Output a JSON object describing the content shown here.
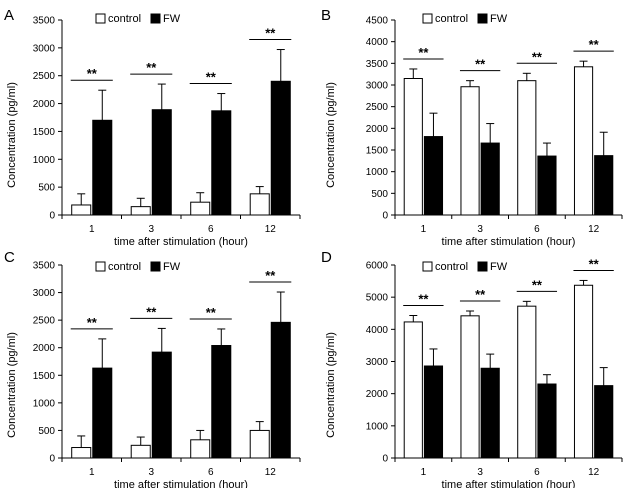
{
  "figure": {
    "colors": {
      "control": "#ffffff",
      "fw": "#000000",
      "axis": "#000000"
    },
    "panels": [
      {
        "letter": "A"
      },
      {
        "letter": "B"
      },
      {
        "letter": "C"
      },
      {
        "letter": "D"
      }
    ]
  },
  "chart_data": [
    {
      "panel": "A",
      "type": "bar",
      "categories": [
        "1",
        "3",
        "6",
        "12"
      ],
      "xlabel": "time after stimulation (hour)",
      "ylabel": "Concentration (pg/ml)",
      "ylim": [
        0,
        3500
      ],
      "yticks": [
        0,
        500,
        1000,
        1500,
        2000,
        2500,
        3000,
        3500
      ],
      "legend": [
        "control",
        "FW"
      ],
      "legend_position": "top-left",
      "series": [
        {
          "name": "control",
          "values": [
            180,
            150,
            230,
            380
          ],
          "errors": [
            200,
            150,
            170,
            130
          ]
        },
        {
          "name": "FW",
          "values": [
            1700,
            1890,
            1870,
            2400
          ],
          "errors": [
            540,
            460,
            310,
            570
          ]
        }
      ],
      "annotations": [
        "**",
        "**",
        "**",
        "**"
      ]
    },
    {
      "panel": "B",
      "type": "bar",
      "categories": [
        "1",
        "3",
        "6",
        "12"
      ],
      "xlabel": "time after stimulation (hour)",
      "ylabel": "Concentration (pg/ml)",
      "ylim": [
        0,
        4500
      ],
      "yticks": [
        0,
        500,
        1000,
        1500,
        2000,
        2500,
        3000,
        3500,
        4000,
        4500
      ],
      "legend": [
        "control",
        "FW"
      ],
      "legend_position": "top-center",
      "series": [
        {
          "name": "control",
          "values": [
            3150,
            2960,
            3100,
            3420
          ],
          "errors": [
            220,
            140,
            170,
            130
          ]
        },
        {
          "name": "FW",
          "values": [
            1810,
            1660,
            1360,
            1370
          ],
          "errors": [
            540,
            450,
            300,
            540
          ]
        }
      ],
      "annotations": [
        "**",
        "**",
        "**",
        "**"
      ]
    },
    {
      "panel": "C",
      "type": "bar",
      "categories": [
        "1",
        "3",
        "6",
        "12"
      ],
      "xlabel": "time after stimulation (hour)",
      "ylabel": "Concentration (pg/ml)",
      "ylim": [
        0,
        3500
      ],
      "yticks": [
        0,
        500,
        1000,
        1500,
        2000,
        2500,
        3000,
        3500
      ],
      "legend": [
        "control",
        "FW"
      ],
      "legend_position": "top-left",
      "series": [
        {
          "name": "control",
          "values": [
            190,
            230,
            330,
            500
          ],
          "errors": [
            210,
            150,
            170,
            160
          ]
        },
        {
          "name": "FW",
          "values": [
            1630,
            1920,
            2040,
            2460
          ],
          "errors": [
            530,
            430,
            300,
            550
          ]
        }
      ],
      "annotations": [
        "**",
        "**",
        "**",
        "**"
      ]
    },
    {
      "panel": "D",
      "type": "bar",
      "categories": [
        "1",
        "3",
        "6",
        "12"
      ],
      "xlabel": "time after stimulation (hour)",
      "ylabel": "Concentration (pg/ml)",
      "ylim": [
        0,
        6000
      ],
      "yticks": [
        0,
        1000,
        2000,
        3000,
        4000,
        5000,
        6000
      ],
      "legend": [
        "control",
        "FW"
      ],
      "legend_position": "top-center",
      "series": [
        {
          "name": "control",
          "values": [
            4230,
            4420,
            4720,
            5370
          ],
          "errors": [
            200,
            150,
            150,
            150
          ]
        },
        {
          "name": "FW",
          "values": [
            2860,
            2790,
            2300,
            2250
          ],
          "errors": [
            530,
            440,
            290,
            560
          ]
        }
      ],
      "annotations": [
        "**",
        "**",
        "**",
        "**"
      ]
    }
  ]
}
